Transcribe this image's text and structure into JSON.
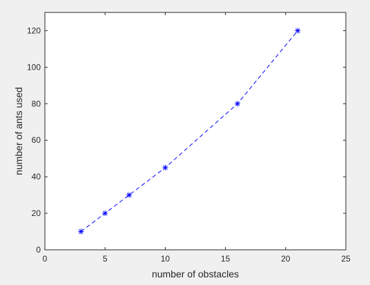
{
  "chart_data": {
    "type": "line",
    "title": "",
    "xlabel": "number of obstacles",
    "ylabel": "number of ants used",
    "xlim": [
      0,
      25
    ],
    "ylim": [
      0,
      130
    ],
    "xticks": [
      0,
      5,
      10,
      15,
      20,
      25
    ],
    "yticks": [
      0,
      20,
      40,
      60,
      80,
      100,
      120
    ],
    "grid": false,
    "legend": "none",
    "series": [
      {
        "x": [
          3,
          5,
          7,
          10,
          16,
          21
        ],
        "y": [
          10,
          20,
          30,
          45,
          80,
          120
        ],
        "color": "#0000ff",
        "line_style": "dashed",
        "marker": "asterisk"
      }
    ]
  }
}
